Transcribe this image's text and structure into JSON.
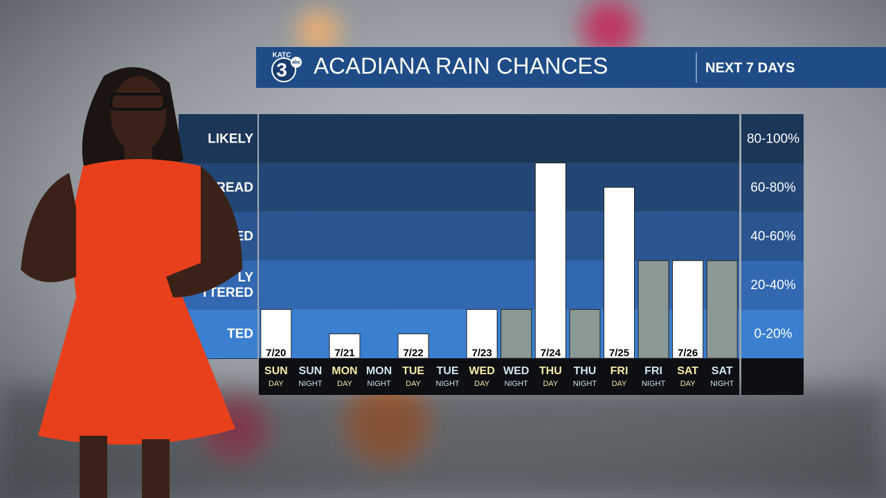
{
  "header": {
    "logo_top": "KATC",
    "logo_number": "3",
    "logo_network": "abc",
    "period": "NEXT 7 DAYS"
  },
  "chart_data": {
    "type": "bar",
    "title": "ACADIANA RAIN CHANCES",
    "categories": [
      "SUN",
      "SUN",
      "MON",
      "MON",
      "TUE",
      "TUE",
      "WED",
      "WED",
      "THU",
      "THU",
      "FRI",
      "FRI",
      "SAT",
      "SAT"
    ],
    "category_sublabels": [
      "DAY",
      "NIGHT",
      "DAY",
      "NIGHT",
      "DAY",
      "NIGHT",
      "DAY",
      "NIGHT",
      "DAY",
      "NIGHT",
      "DAY",
      "NIGHT",
      "DAY",
      "NIGHT"
    ],
    "date_labels": [
      "7/20",
      null,
      "7/21",
      null,
      "7/22",
      null,
      "7/23",
      null,
      "7/24",
      null,
      "7/25",
      null,
      "7/26",
      null
    ],
    "values": [
      20,
      0,
      10,
      0,
      10,
      0,
      20,
      20,
      80,
      20,
      70,
      40,
      40,
      40
    ],
    "colors": [
      "#ffffff",
      "#8a9896",
      "#ffffff",
      "#8a9896",
      "#ffffff",
      "#8a9896",
      "#ffffff",
      "#8a9896",
      "#ffffff",
      "#8a9896",
      "#ffffff",
      "#8a9896",
      "#ffffff",
      "#8a9896"
    ],
    "ylim": [
      0,
      100
    ],
    "bands": [
      {
        "min": 0,
        "max": 20,
        "label": "0-20%",
        "name_lines": [
          "TED"
        ],
        "color": "#3a7fd0"
      },
      {
        "min": 20,
        "max": 40,
        "label": "20-40%",
        "name_lines": [
          "LY",
          "TTERED"
        ],
        "color": "#3268b0"
      },
      {
        "min": 40,
        "max": 60,
        "label": "40-60%",
        "name_lines": [
          "ED"
        ],
        "color": "#2a5590"
      },
      {
        "min": 60,
        "max": 80,
        "label": "60-80%",
        "name_lines": [
          "READ"
        ],
        "color": "#244674"
      },
      {
        "min": 80,
        "max": 100,
        "label": "80-100%",
        "name_lines": [
          "LIKELY"
        ],
        "color": "#1c3658"
      }
    ]
  }
}
